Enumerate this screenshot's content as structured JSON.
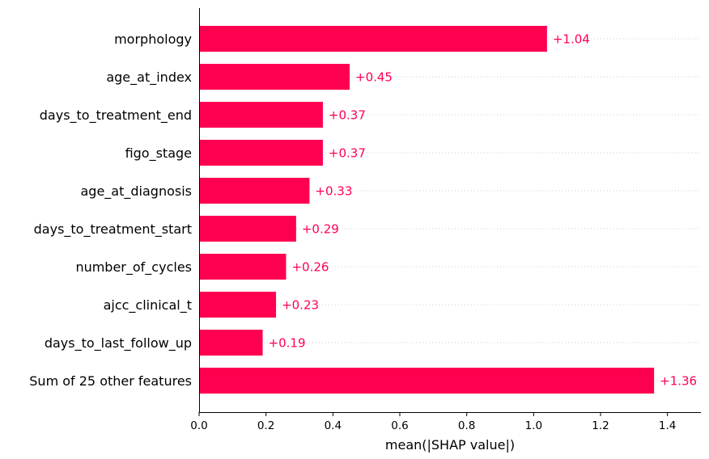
{
  "colors": {
    "bar": "#ff0051",
    "value_text": "#ff0051",
    "axis": "#000000",
    "guide": "#cccccc"
  },
  "chart_data": {
    "type": "bar",
    "orientation": "horizontal",
    "categories": [
      "morphology",
      "age_at_index",
      "days_to_treatment_end",
      "figo_stage",
      "age_at_diagnosis",
      "days_to_treatment_start",
      "number_of_cycles",
      "ajcc_clinical_t",
      "days_to_last_follow_up",
      "Sum of 25 other features"
    ],
    "values": [
      1.04,
      0.45,
      0.37,
      0.37,
      0.33,
      0.29,
      0.26,
      0.23,
      0.19,
      1.36
    ],
    "value_labels": [
      "+1.04",
      "+0.45",
      "+0.37",
      "+0.37",
      "+0.33",
      "+0.29",
      "+0.26",
      "+0.23",
      "+0.19",
      "+1.36"
    ],
    "xlabel": "mean(|SHAP value|)",
    "ylabel": "",
    "title": "",
    "xlim": [
      0,
      1.5
    ],
    "xticks": [
      0.0,
      0.2,
      0.4,
      0.6,
      0.8,
      1.0,
      1.2,
      1.4
    ],
    "xtick_labels": [
      "0.0",
      "0.2",
      "0.4",
      "0.6",
      "0.8",
      "1.0",
      "1.2",
      "1.4"
    ],
    "dotted_row_guides": true,
    "grid": false,
    "legend": "none"
  }
}
